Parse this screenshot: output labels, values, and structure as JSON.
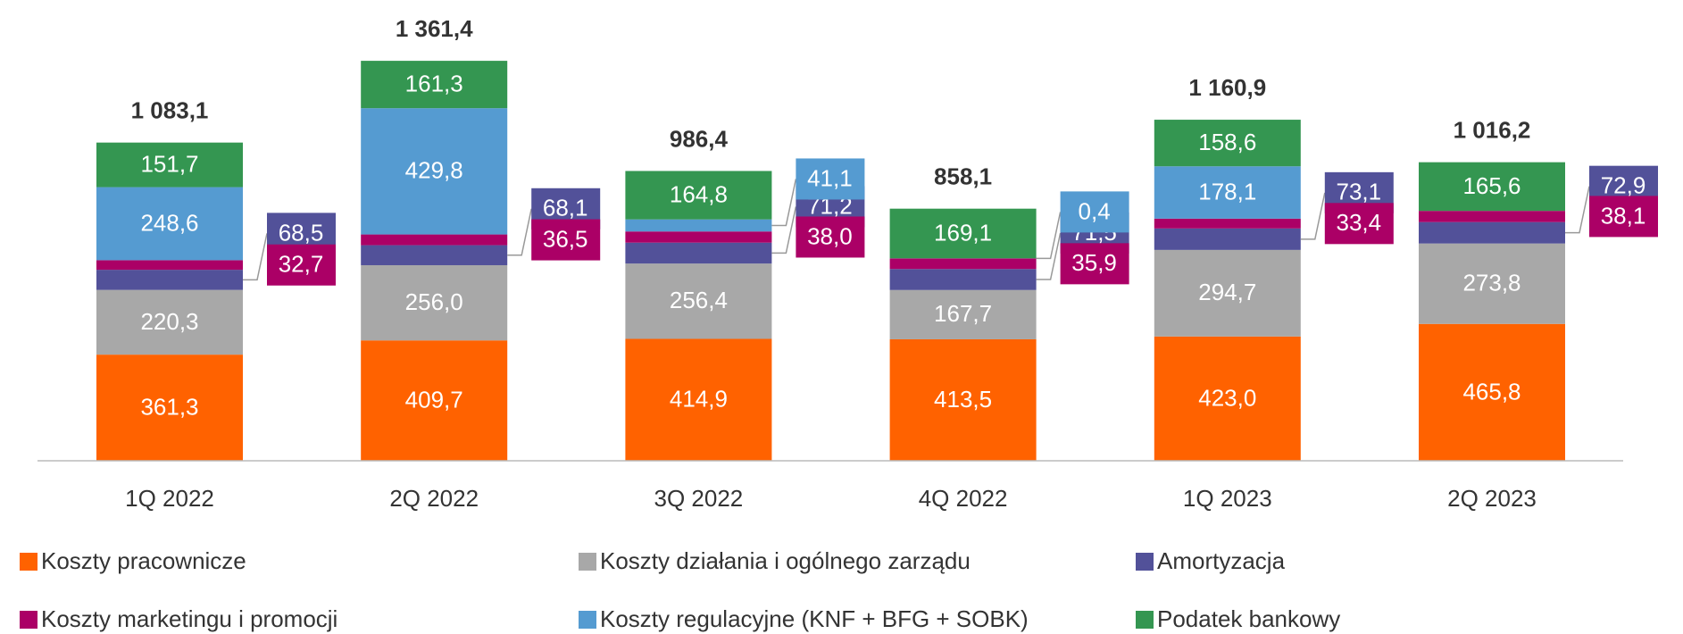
{
  "chart_data": {
    "type": "stacked_bar",
    "categories": [
      "1Q 2022",
      "2Q 2022",
      "3Q 2022",
      "4Q 2022",
      "1Q 2023",
      "2Q 2023"
    ],
    "series": [
      {
        "name": "Koszty pracownicze",
        "color": "#ff6200",
        "values": [
          361.3,
          409.7,
          414.9,
          413.5,
          423.0,
          465.8
        ],
        "value_labels": [
          "361,3",
          "409,7",
          "414,9",
          "413,5",
          "423,0",
          "465,8"
        ]
      },
      {
        "name": "Koszty działania i ogólnego zarządu",
        "color": "#a8a8a8",
        "values": [
          220.3,
          256.0,
          256.4,
          167.7,
          294.7,
          273.8
        ],
        "value_labels": [
          "220,3",
          "256,0",
          "256,4",
          "167,7",
          "294,7",
          "273,8"
        ]
      },
      {
        "name": "Amortyzacja",
        "color": "#525199",
        "values": [
          68.5,
          68.1,
          71.2,
          71.5,
          73.1,
          72.9
        ],
        "value_labels": [
          "68,5",
          "68,1",
          "71,2",
          "71,5",
          "73,1",
          "72,9"
        ]
      },
      {
        "name": "Koszty marketingu i promocji",
        "color": "#ab0066",
        "values": [
          32.7,
          36.5,
          38.0,
          35.9,
          33.4,
          38.1
        ],
        "value_labels": [
          "32,7",
          "36,5",
          "38,0",
          "35,9",
          "33,4",
          "38,1"
        ]
      },
      {
        "name": "Koszty regulacyjne (KNF + BFG + SOBK)",
        "color": "#559bd1",
        "values": [
          248.6,
          429.8,
          41.1,
          0.4,
          178.1,
          0.0
        ],
        "value_labels": [
          "248,6",
          "429,8",
          "41,1",
          "0,4",
          "178,1",
          null
        ]
      },
      {
        "name": "Podatek bankowy",
        "color": "#349651",
        "values": [
          151.7,
          161.3,
          164.8,
          169.1,
          158.6,
          165.6
        ],
        "value_labels": [
          "151,7",
          "161,3",
          "164,8",
          "169,1",
          "158,6",
          "165,6"
        ]
      }
    ],
    "totals": [
      1083.1,
      1361.4,
      986.4,
      858.1,
      1160.9,
      1016.2
    ],
    "total_labels": [
      "1 083,1",
      "1 361,4",
      "986,4",
      "858,1",
      "1 160,9",
      "1 016,2"
    ]
  }
}
